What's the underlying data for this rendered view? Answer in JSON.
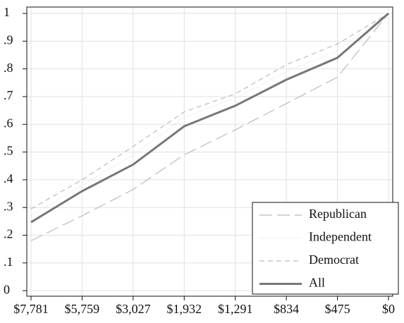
{
  "chart_data": {
    "type": "line",
    "categories": [
      "$7,781",
      "$5,759",
      "$3,027",
      "$1,932",
      "$1,291",
      "$834",
      "$475",
      "$0"
    ],
    "series": [
      {
        "name": "Republican",
        "color": "#bbbbbb",
        "dash": "long-dash",
        "values": [
          0.18,
          0.27,
          0.365,
          0.49,
          0.58,
          0.675,
          0.77,
          1.0
        ]
      },
      {
        "name": "Independent",
        "color": "#dddddd",
        "dash": "dotted",
        "values": [
          0.27,
          0.38,
          0.49,
          0.625,
          0.695,
          0.79,
          0.865,
          1.0
        ]
      },
      {
        "name": "Democrat",
        "color": "#bbbbbb",
        "dash": "dash",
        "values": [
          0.295,
          0.4,
          0.52,
          0.645,
          0.71,
          0.815,
          0.89,
          1.0
        ]
      },
      {
        "name": "All",
        "color": "#777777",
        "dash": "solid",
        "values": [
          0.247,
          0.359,
          0.455,
          0.593,
          0.667,
          0.761,
          0.84,
          1.0
        ]
      }
    ],
    "ylim": [
      -0.02,
      1.023
    ],
    "yticks": [
      0,
      {
        "value": 0.1,
        "label": ".1"
      },
      {
        "value": 0.2,
        "label": ".2"
      },
      {
        "value": 0.3,
        "label": ".3"
      },
      {
        "value": 0.4,
        "label": ".4"
      },
      {
        "value": 0.5,
        "label": ".5"
      },
      {
        "value": 0.6,
        "label": ".6"
      },
      {
        "value": 0.7,
        "label": ".7"
      },
      {
        "value": 0.8,
        "label": ".8"
      },
      {
        "value": 0.9,
        "label": ".9"
      },
      1
    ],
    "grid": true,
    "legend": "bottom-right"
  }
}
